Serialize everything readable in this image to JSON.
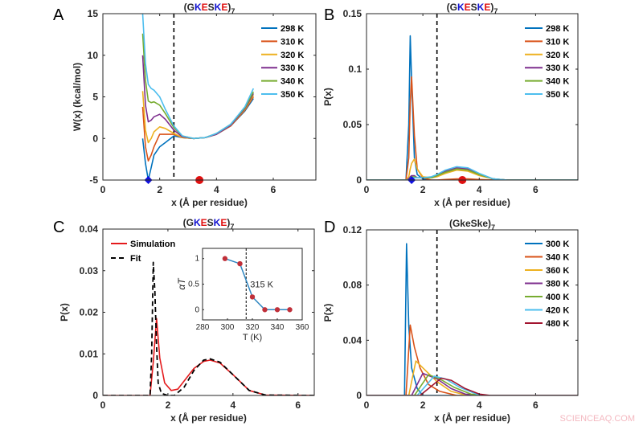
{
  "panel_letters": [
    "A",
    "B",
    "C",
    "D"
  ],
  "watermark": "SCIENCEAQ.COM",
  "series_colors": [
    "#0072BD",
    "#D95319",
    "#EDB120",
    "#7E2F8E",
    "#77AC30",
    "#4DBEEE",
    "#A2142F"
  ],
  "chart_data": [
    {
      "id": "A",
      "type": "line",
      "title": "(GKESKE)7",
      "title_parts": [
        [
          "(",
          "#262626"
        ],
        [
          "G",
          "#262626"
        ],
        [
          "K",
          "#1010D0"
        ],
        [
          "E",
          "#E01010"
        ],
        [
          "S",
          "#262626"
        ],
        [
          "K",
          "#1010D0"
        ],
        [
          "E",
          "#E01010"
        ],
        [
          ")",
          "#262626"
        ],
        [
          "7",
          "#262626"
        ]
      ],
      "xlabel": "x (Å per residue)",
      "ylabel": "W(x) (kcal/mol)",
      "xlim": [
        0,
        7.5
      ],
      "ylim": [
        -5,
        15
      ],
      "xticks": [
        0,
        2,
        4,
        6
      ],
      "yticks": [
        -5,
        0,
        5,
        10,
        15
      ],
      "vline": 2.5,
      "legend": "top-right",
      "markers": [
        {
          "shape": "diamond",
          "x": 1.6,
          "y": -5,
          "color": "#1010E0"
        },
        {
          "shape": "circle",
          "x": 3.4,
          "y": -5,
          "color": "#E01010"
        }
      ],
      "series": [
        {
          "name": "298 K",
          "x": [
            1.4,
            1.5,
            1.6,
            1.7,
            1.8,
            2.0,
            2.2,
            2.5,
            2.8,
            3.2,
            3.6,
            4.0,
            4.5,
            5.0,
            5.3
          ],
          "y": [
            0,
            -3,
            -5,
            -3.5,
            -2,
            -1,
            -0.5,
            0.3,
            0.1,
            0,
            0.1,
            0.5,
            1.5,
            3.3,
            4.8
          ]
        },
        {
          "name": "310 K",
          "x": [
            1.4,
            1.5,
            1.6,
            1.7,
            1.8,
            2.0,
            2.2,
            2.5,
            2.8,
            3.2,
            3.6,
            4.0,
            4.5,
            5.0,
            5.3
          ],
          "y": [
            3.8,
            -1,
            -2.7,
            -2,
            -1,
            0.5,
            0.5,
            0.5,
            0.1,
            0,
            0.1,
            0.5,
            1.5,
            3.4,
            5
          ]
        },
        {
          "name": "320 K",
          "x": [
            1.4,
            1.5,
            1.6,
            1.7,
            1.8,
            2.0,
            2.2,
            2.5,
            2.8,
            3.2,
            3.6,
            4.0,
            4.5,
            5.0,
            5.3
          ],
          "y": [
            5.7,
            1,
            -0.5,
            0,
            0.8,
            1.4,
            1.2,
            0.6,
            0.1,
            0,
            0.1,
            0.5,
            1.6,
            3.5,
            5.2
          ]
        },
        {
          "name": "330 K",
          "x": [
            1.4,
            1.5,
            1.6,
            1.7,
            1.8,
            2.0,
            2.2,
            2.5,
            2.8,
            3.2,
            3.6,
            4.0,
            4.5,
            5.0,
            5.3
          ],
          "y": [
            10,
            4,
            2,
            2.2,
            2.6,
            2.9,
            2.3,
            1,
            0.2,
            0,
            0.1,
            0.5,
            1.6,
            3.6,
            5.4
          ]
        },
        {
          "name": "340 K",
          "x": [
            1.4,
            1.5,
            1.6,
            1.7,
            1.8,
            2.0,
            2.2,
            2.5,
            2.8,
            3.2,
            3.6,
            4.0,
            4.5,
            5.0,
            5.3
          ],
          "y": [
            12.6,
            7,
            4.5,
            4.3,
            4.4,
            4,
            3,
            1.3,
            0.3,
            0,
            0.1,
            0.6,
            1.7,
            3.7,
            5.6
          ]
        },
        {
          "name": "350 K",
          "x": [
            1.4,
            1.5,
            1.6,
            1.7,
            1.8,
            2.0,
            2.2,
            2.5,
            2.8,
            3.2,
            3.6,
            4.0,
            4.5,
            5.0,
            5.3
          ],
          "y": [
            15,
            9,
            6.5,
            6,
            5.8,
            5,
            3.5,
            1.5,
            0.3,
            0,
            0.1,
            0.6,
            1.7,
            3.8,
            6
          ]
        }
      ]
    },
    {
      "id": "B",
      "type": "line",
      "title": "(GKESKE)7",
      "title_parts": [
        [
          "(",
          "#262626"
        ],
        [
          "G",
          "#262626"
        ],
        [
          "K",
          "#1010D0"
        ],
        [
          "E",
          "#E01010"
        ],
        [
          "S",
          "#262626"
        ],
        [
          "K",
          "#1010D0"
        ],
        [
          "E",
          "#E01010"
        ],
        [
          ")",
          "#262626"
        ],
        [
          "7",
          "#262626"
        ]
      ],
      "xlabel": "x (Å per residue)",
      "ylabel": "P(x)",
      "xlim": [
        0,
        7.5
      ],
      "ylim": [
        0,
        0.15
      ],
      "xticks": [
        0,
        2,
        4,
        6
      ],
      "yticks": [
        0,
        0.05,
        0.1,
        0.15
      ],
      "vline": 2.5,
      "legend": "top-right",
      "markers": [
        {
          "shape": "diamond",
          "x": 1.6,
          "y": 0,
          "color": "#1010E0"
        },
        {
          "shape": "circle",
          "x": 3.4,
          "y": 0,
          "color": "#E01010"
        }
      ],
      "series": [
        {
          "name": "298 K",
          "x": [
            0,
            1.4,
            1.5,
            1.55,
            1.6,
            1.7,
            1.8,
            2.0,
            2.3,
            2.5,
            2.8,
            3.2,
            3.6,
            4.0,
            4.5,
            5,
            7.5
          ],
          "y": [
            0,
            0,
            0.05,
            0.13,
            0.09,
            0.02,
            0.005,
            0.001,
            0,
            0,
            0,
            0,
            0,
            0,
            0,
            0,
            0
          ]
        },
        {
          "name": "310 K",
          "x": [
            0,
            1.4,
            1.5,
            1.55,
            1.6,
            1.7,
            1.8,
            2.0,
            2.3,
            2.5,
            2.8,
            3.2,
            3.6,
            4.0,
            4.5,
            5,
            7.5
          ],
          "y": [
            0,
            0,
            0.02,
            0.07,
            0.093,
            0.04,
            0.01,
            0.002,
            0,
            0,
            0.0005,
            0.001,
            0.001,
            0.0005,
            0,
            0,
            0
          ]
        },
        {
          "name": "320 K",
          "x": [
            0,
            1.4,
            1.5,
            1.55,
            1.6,
            1.7,
            1.8,
            2.0,
            2.3,
            2.5,
            2.8,
            3.2,
            3.6,
            4.0,
            4.5,
            5,
            7.5
          ],
          "y": [
            0,
            0,
            0.003,
            0.01,
            0.015,
            0.019,
            0.01,
            0.003,
            0.002,
            0.003,
            0.006,
            0.009,
            0.008,
            0.004,
            0.001,
            0,
            0
          ]
        },
        {
          "name": "330 K",
          "x": [
            0,
            1.4,
            1.5,
            1.55,
            1.6,
            1.7,
            1.8,
            2.0,
            2.3,
            2.5,
            2.8,
            3.2,
            3.6,
            4.0,
            4.5,
            5,
            7.5
          ],
          "y": [
            0,
            0,
            0.001,
            0.003,
            0.004,
            0.004,
            0.002,
            0.002,
            0.002,
            0.004,
            0.008,
            0.011,
            0.01,
            0.005,
            0.001,
            0,
            0
          ]
        },
        {
          "name": "340 K",
          "x": [
            0,
            1.4,
            1.5,
            1.55,
            1.6,
            1.7,
            1.8,
            2.0,
            2.3,
            2.5,
            2.8,
            3.2,
            3.6,
            4.0,
            4.5,
            5,
            7.5
          ],
          "y": [
            0,
            0,
            0,
            0.002,
            0.003,
            0.003,
            0.002,
            0.002,
            0.002,
            0.004,
            0.007,
            0.01,
            0.009,
            0.005,
            0.001,
            0,
            0
          ]
        },
        {
          "name": "350 K",
          "x": [
            0,
            1.4,
            1.5,
            1.55,
            1.6,
            1.7,
            1.8,
            2.0,
            2.3,
            2.5,
            2.8,
            3.2,
            3.6,
            4.0,
            4.5,
            5,
            7.5
          ],
          "y": [
            0,
            0,
            0,
            0.001,
            0.002,
            0.002,
            0.002,
            0.002,
            0.003,
            0.005,
            0.009,
            0.012,
            0.011,
            0.006,
            0.001,
            0,
            0
          ]
        }
      ]
    },
    {
      "id": "C",
      "type": "line",
      "title": "(GKESKE)7",
      "title_parts": [
        [
          "(",
          "#262626"
        ],
        [
          "G",
          "#262626"
        ],
        [
          "K",
          "#1010D0"
        ],
        [
          "E",
          "#E01010"
        ],
        [
          "S",
          "#262626"
        ],
        [
          "K",
          "#1010D0"
        ],
        [
          "E",
          "#E01010"
        ],
        [
          ")",
          "#262626"
        ],
        [
          "7",
          "#262626"
        ]
      ],
      "xlabel": "x (Å per residue)",
      "ylabel": "P(x)",
      "xlim": [
        0,
        6.5
      ],
      "ylim": [
        0,
        0.04
      ],
      "xticks": [
        0,
        2,
        4,
        6
      ],
      "yticks": [
        0,
        0.01,
        0.02,
        0.03,
        0.04
      ],
      "legend": "top-left",
      "series": [
        {
          "name": "Simulation",
          "color": "#E41A1C",
          "dash": false,
          "x": [
            0,
            1.45,
            1.55,
            1.65,
            1.75,
            1.9,
            2.1,
            2.3,
            2.5,
            2.8,
            3.1,
            3.3,
            3.6,
            4.0,
            4.5,
            5,
            6.5
          ],
          "y": [
            0,
            0,
            0.008,
            0.0185,
            0.009,
            0.003,
            0.0012,
            0.0015,
            0.0035,
            0.0065,
            0.0082,
            0.0085,
            0.0078,
            0.005,
            0.0012,
            0.0001,
            0
          ]
        },
        {
          "name": "Fit",
          "color": "#000000",
          "dash": true,
          "x": [
            0,
            1.45,
            1.5,
            1.55,
            1.6,
            1.65,
            1.7,
            1.8,
            2.0,
            2.2,
            2.5,
            2.8,
            3.1,
            3.3,
            3.6,
            4.0,
            4.5,
            5,
            6.5
          ],
          "y": [
            0,
            0,
            0.01,
            0.032,
            0.025,
            0.012,
            0.003,
            0.0005,
            0,
            0,
            0.002,
            0.006,
            0.0085,
            0.0088,
            0.008,
            0.005,
            0.0012,
            0.0001,
            0
          ]
        }
      ],
      "inset": {
        "type": "line",
        "xlabel": "T (K)",
        "ylabel": "αT",
        "xlim": [
          280,
          360
        ],
        "ylim": [
          -0.2,
          1.2
        ],
        "xticks": [
          280,
          300,
          320,
          340,
          360
        ],
        "yticks": [
          0,
          0.5,
          1
        ],
        "vline": 315,
        "annotation": "315 K",
        "line_color": "#2E86C1",
        "marker_color": "#C0303A",
        "x": [
          298,
          310,
          320,
          330,
          340,
          350
        ],
        "y": [
          1,
          0.9,
          0.25,
          0,
          0,
          0
        ]
      }
    },
    {
      "id": "D",
      "type": "line",
      "title": "(GkeSke)7",
      "title_parts": [
        [
          "(GkeSke)",
          "#262626"
        ],
        [
          "7",
          "#262626"
        ]
      ],
      "xlabel": "x (Å per residue)",
      "ylabel": "P(x)",
      "xlim": [
        0,
        7.5
      ],
      "ylim": [
        0,
        0.12
      ],
      "xticks": [
        0,
        2,
        4,
        6
      ],
      "yticks": [
        0,
        0.04,
        0.08,
        0.12
      ],
      "vline": 2.5,
      "legend": "top-right",
      "series": [
        {
          "name": "300 K",
          "x": [
            0,
            1.35,
            1.42,
            1.5,
            1.6,
            1.8,
            2.0,
            7.5
          ],
          "y": [
            0,
            0,
            0.11,
            0.05,
            0.02,
            0.005,
            0,
            0
          ]
        },
        {
          "name": "340 K",
          "x": [
            0,
            1.4,
            1.55,
            1.7,
            1.9,
            2.2,
            2.6,
            3.2,
            7.5
          ],
          "y": [
            0,
            0,
            0.051,
            0.035,
            0.02,
            0.008,
            0.003,
            0,
            0
          ]
        },
        {
          "name": "360 K",
          "x": [
            0,
            1.5,
            1.75,
            2.0,
            2.5,
            3.0,
            3.6,
            7.5
          ],
          "y": [
            0,
            0,
            0.025,
            0.02,
            0.01,
            0.003,
            0,
            0
          ]
        },
        {
          "name": "380 K",
          "x": [
            0,
            1.6,
            2.0,
            2.5,
            3.0,
            3.5,
            4.0,
            7.5
          ],
          "y": [
            0,
            0,
            0.016,
            0.012,
            0.005,
            0.001,
            0,
            0
          ]
        },
        {
          "name": "400 K",
          "x": [
            0,
            1.7,
            2.2,
            2.6,
            3.1,
            3.7,
            4.2,
            7.5
          ],
          "y": [
            0,
            0,
            0.015,
            0.012,
            0.006,
            0.001,
            0,
            0
          ]
        },
        {
          "name": "420 K",
          "x": [
            0,
            1.8,
            2.4,
            2.8,
            3.3,
            3.9,
            4.3,
            7.5
          ],
          "y": [
            0,
            0,
            0.014,
            0.012,
            0.006,
            0.001,
            0,
            0
          ]
        },
        {
          "name": "480 K",
          "x": [
            0,
            1.9,
            2.65,
            3.0,
            3.5,
            4.0,
            4.4,
            7.5
          ],
          "y": [
            0,
            0,
            0.0125,
            0.011,
            0.005,
            0.001,
            0,
            0
          ]
        }
      ]
    }
  ]
}
